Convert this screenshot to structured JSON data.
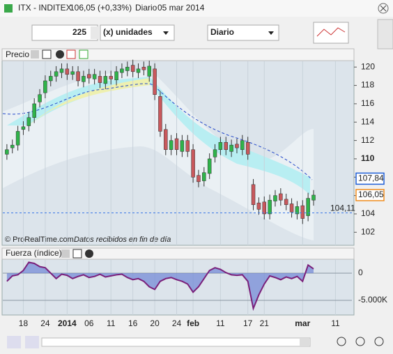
{
  "window": {
    "symbol": "ITX - INDITEX",
    "quote": "106,05 (+0,33%)",
    "period": "Diario",
    "date": "05 mar 2014"
  },
  "toolbar": {
    "quantity": "225",
    "units": "(x) unidades",
    "timeframe": "Diario"
  },
  "chart_data": [
    {
      "type": "candlestick",
      "title": "Precio",
      "source": "© ProRealTime.com",
      "annotation": "Datos recibidos en fin de día",
      "up_color": "#2fb34a",
      "down_color": "#c8585c",
      "open": [
        110.5,
        111.2,
        111.5,
        113.2,
        113.6,
        114.5,
        116.2,
        117.2,
        118.5,
        119.0,
        119.4,
        119.8,
        119.2,
        119.5,
        118.4,
        119.2,
        118.7,
        119.0,
        118.2,
        119.0,
        118.6,
        119.4,
        119.6,
        120.2,
        119.4,
        120.0,
        119.0,
        119.8,
        116.8,
        113.2,
        111.0,
        112.2,
        110.8,
        112.0,
        111.0,
        108.2,
        107.6,
        108.4,
        110.2,
        111.0,
        111.8,
        110.8,
        111.6,
        111.0,
        111.8,
        107.2,
        105.2,
        105.3,
        104.0,
        105.4,
        106.2,
        105.6,
        105.1,
        104.0,
        104.9,
        103.8,
        105.5
      ],
      "high": [
        111.6,
        112.1,
        113.6,
        114.1,
        115.1,
        116.6,
        117.6,
        119.1,
        119.6,
        120.1,
        120.4,
        120.4,
        120.1,
        120.1,
        119.6,
        119.8,
        119.8,
        119.6,
        119.6,
        119.6,
        120.1,
        120.4,
        120.6,
        120.8,
        120.4,
        120.6,
        120.7,
        120.4,
        117.4,
        113.8,
        112.6,
        112.8,
        112.6,
        112.6,
        111.6,
        108.8,
        109.1,
        110.6,
        111.6,
        112.4,
        112.4,
        112.1,
        112.2,
        112.6,
        112.4,
        107.8,
        105.8,
        105.9,
        106.1,
        106.6,
        106.8,
        106.2,
        105.7,
        105.4,
        105.5,
        106.3,
        106.6
      ],
      "low": [
        109.9,
        110.6,
        110.9,
        112.6,
        113.0,
        113.9,
        115.6,
        116.6,
        117.9,
        118.4,
        118.8,
        118.6,
        118.6,
        117.9,
        117.8,
        118.2,
        118.1,
        117.7,
        117.6,
        118.1,
        118.0,
        118.8,
        119.0,
        118.9,
        118.8,
        119.1,
        118.4,
        116.4,
        112.4,
        110.4,
        110.4,
        110.4,
        110.2,
        110.2,
        107.4,
        106.9,
        107.0,
        107.8,
        109.6,
        110.4,
        110.4,
        110.2,
        110.6,
        110.4,
        109.9,
        104.4,
        103.9,
        103.4,
        103.4,
        104.8,
        104.9,
        104.4,
        103.6,
        103.4,
        102.9,
        103.2,
        104.9
      ],
      "close": [
        111.0,
        111.5,
        113.0,
        113.5,
        114.5,
        116.0,
        117.0,
        118.5,
        119.0,
        119.5,
        119.8,
        119.2,
        119.5,
        118.5,
        119.0,
        118.8,
        119.2,
        118.3,
        119.0,
        118.7,
        119.5,
        119.8,
        120.0,
        119.5,
        119.8,
        119.7,
        120.1,
        117.0,
        113.0,
        111.0,
        112.0,
        111.0,
        112.0,
        110.8,
        108.0,
        107.5,
        108.5,
        110.0,
        111.0,
        111.8,
        111.0,
        111.5,
        111.2,
        112.0,
        110.5,
        105.0,
        104.5,
        104.0,
        105.5,
        106.0,
        105.5,
        105.0,
        104.2,
        104.8,
        103.5,
        105.7,
        106.05
      ],
      "xlim": [
        -0.75,
        63
      ],
      "ylim": [
        100.58,
        121.84
      ],
      "yticks": [
        102,
        104,
        106,
        108,
        110,
        112,
        114,
        116,
        118,
        120
      ],
      "xticks": [
        {
          "value": 3,
          "label": "18"
        },
        {
          "value": 7,
          "label": "24"
        },
        {
          "value": 11,
          "label": "2014"
        },
        {
          "value": 15,
          "label": "06"
        },
        {
          "value": 19,
          "label": "11"
        },
        {
          "value": 23,
          "label": "16"
        },
        {
          "value": 27,
          "label": "20"
        },
        {
          "value": 31,
          "label": "24"
        },
        {
          "value": 34,
          "label": "feb"
        },
        {
          "value": 39,
          "label": "11"
        },
        {
          "value": 44,
          "label": "17"
        },
        {
          "value": 47,
          "label": "21"
        },
        {
          "value": 54,
          "label": "mar"
        },
        {
          "value": 60,
          "label": "11"
        }
      ],
      "price_levels": [
        {
          "value": 107.84,
          "label": "107,84",
          "color": "#1f5fd6"
        },
        {
          "value": 106.05,
          "label": "106,05",
          "color": "#f08c1e"
        },
        {
          "value": 104.11,
          "label": "104,11",
          "color": "#3b78e7"
        }
      ]
    },
    {
      "type": "line",
      "title": "Fuerza (índice)",
      "color": "#7a1f7a",
      "fill": "#6f86d6",
      "values": [
        -1500,
        -500,
        -300,
        500,
        2000,
        1800,
        1200,
        1000,
        0,
        -1000,
        -200,
        -400,
        -1000,
        -600,
        -300,
        -800,
        -600,
        -200,
        -700,
        -500,
        -300,
        -200,
        -800,
        -1200,
        -1000,
        -1500,
        -2500,
        -3000,
        -1500,
        -1000,
        -800,
        -1200,
        -1500,
        -2000,
        -3500,
        -2500,
        -1000,
        500,
        1000,
        700,
        100,
        -300,
        -400,
        -300,
        -1500,
        -6500,
        -4000,
        -2000,
        -500,
        -800,
        -1200,
        -700,
        -1000,
        -600,
        -1500,
        1500,
        800
      ],
      "ylim": [
        -7692,
        2564
      ],
      "yticks": [
        0,
        {
          "value": -5000,
          "label": "-5.000K"
        }
      ]
    }
  ]
}
